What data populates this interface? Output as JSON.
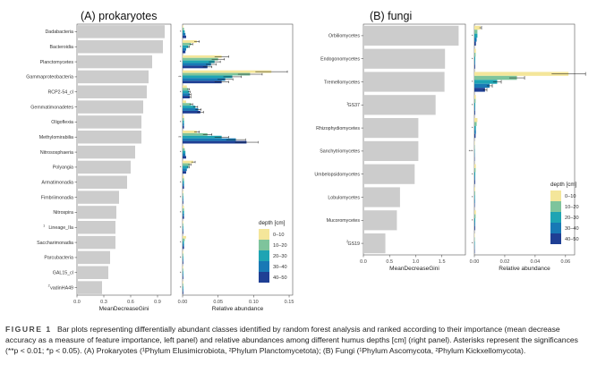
{
  "figure_label": "FIGURE 1",
  "caption": "Bar plots representing differentially abundant classes identified by random forest analysis and ranked according to their importance (mean decrease accuracy as a measure of feature importance, left panel) and relative abundances among different humus depths [cm] (right panel). Asterisks represent the significances (**p < 0.01; *p < 0.05). (A) Prokaryotes (¹Phylum Elusimicrobiota, ²Phylum Planctomycetota); (B) Fungi (¹Phylum Ascomycota, ²Phylum Kickxellomycota).",
  "colors": {
    "importance_bar": "#cccccc",
    "depth_palette": [
      "#f4e69a",
      "#7ec49c",
      "#1ea4b3",
      "#1879b5",
      "#1f3f94"
    ]
  },
  "legend": {
    "title": "depth [cm]",
    "entries": [
      "0–10",
      "10–20",
      "20–30",
      "30–40",
      "40–50"
    ]
  },
  "chart_data": [
    {
      "type": "bar",
      "title": "(A) prokaryotes",
      "panel": "importance",
      "orientation": "horizontal",
      "xlabel": "MeanDecreaseGini",
      "xlim": [
        0,
        1.05
      ],
      "xticks": [
        0.0,
        0.3,
        0.6,
        0.9
      ],
      "categories": [
        "Dadabacteria",
        "Bacteroidia",
        "Planctomycetes",
        "Gammaproteobacteria",
        "RCP2-54_cl",
        "Gemmatimonadetes",
        "Oligoflexia",
        "Methylomirabilia",
        "Nitrososphaeria",
        "Polyangia",
        "Armatimonadia",
        "Fimbriimonadia",
        "Nitrospira",
        "Lineage_IIa",
        "Saccharimonadia",
        "Parcubacteria",
        "GAL15_cl",
        "vadinHA49"
      ],
      "category_markers": [
        "",
        "",
        "",
        "",
        "",
        "",
        "",
        "",
        "",
        "",
        "",
        "",
        "",
        "1",
        "",
        "",
        "",
        "2"
      ],
      "values": [
        0.98,
        0.96,
        0.84,
        0.8,
        0.78,
        0.74,
        0.72,
        0.72,
        0.65,
        0.6,
        0.56,
        0.47,
        0.44,
        0.43,
        0.43,
        0.37,
        0.35,
        0.28
      ]
    },
    {
      "type": "bar",
      "panel": "abundance",
      "orientation": "horizontal",
      "xlabel": "Relative abundance",
      "xlim": [
        0,
        0.155
      ],
      "xticks": [
        0.0,
        0.05,
        0.1,
        0.15
      ],
      "xticklabels": [
        "0.00",
        "0.05",
        "0.10",
        "0.15"
      ],
      "categories": [
        "Dadabacteria",
        "Bacteroidia",
        "Planctomycetes",
        "Gammaproteobacteria",
        "RCP2-54_cl",
        "Gemmatimonadetes",
        "Oligoflexia",
        "Methylomirabilia",
        "Nitrososphaeria",
        "Polyangia",
        "Armatimonadia",
        "Fimbriimonadia",
        "Nitrospira",
        "Lineage_IIa",
        "Saccharimonadia",
        "Parcubacteria",
        "GAL15_cl",
        "vadinHA49"
      ],
      "series": [
        {
          "name": "0–10",
          "values": [
            0.001,
            0.02,
            0.055,
            0.125,
            0.006,
            0.005,
            0.002,
            0.02,
            0.002,
            0.015,
            0.002,
            0.001,
            0.002,
            0.001,
            0.005,
            0.001,
            0.001,
            0.001
          ]
        },
        {
          "name": "10–20",
          "values": [
            0.002,
            0.012,
            0.05,
            0.095,
            0.008,
            0.012,
            0.002,
            0.035,
            0.003,
            0.01,
            0.002,
            0.001,
            0.002,
            0.001,
            0.003,
            0.001,
            0.001,
            0.001
          ]
        },
        {
          "name": "20–30",
          "values": [
            0.003,
            0.008,
            0.045,
            0.07,
            0.009,
            0.018,
            0.002,
            0.055,
            0.004,
            0.008,
            0.002,
            0.001,
            0.002,
            0.001,
            0.002,
            0.001,
            0.001,
            0.001
          ]
        },
        {
          "name": "30–40",
          "values": [
            0.004,
            0.005,
            0.04,
            0.06,
            0.01,
            0.022,
            0.002,
            0.075,
            0.004,
            0.006,
            0.002,
            0.001,
            0.002,
            0.001,
            0.002,
            0.001,
            0.001,
            0.001
          ]
        },
        {
          "name": "40–50",
          "values": [
            0.005,
            0.004,
            0.035,
            0.055,
            0.01,
            0.025,
            0.002,
            0.09,
            0.005,
            0.005,
            0.002,
            0.001,
            0.002,
            0.001,
            0.002,
            0.001,
            0.001,
            0.001
          ]
        }
      ],
      "significance": [
        "*",
        "*",
        "*",
        "**",
        "*",
        "*",
        "*",
        "**",
        "*",
        "*",
        "*",
        "*",
        "*",
        "*",
        "*",
        "*",
        "*",
        "*"
      ]
    },
    {
      "type": "bar",
      "title": "(B) fungi",
      "panel": "importance",
      "orientation": "horizontal",
      "xlabel": "MeanDecreaseGini",
      "xlim": [
        0,
        1.95
      ],
      "xticks": [
        0.0,
        0.5,
        1.0,
        1.5
      ],
      "xticklabels": [
        "0.0",
        "0.5",
        "1.0",
        "1.5"
      ],
      "categories": [
        "Orbiliomycetes",
        "Endogonomycetes",
        "Tremellomycetes",
        "GS37",
        "Rhizophydiomycetes",
        "Sanchytriomycetes",
        "Umbelopsidomycetes",
        "Lobulomycetes",
        "Mucoromycetes",
        "GS19"
      ],
      "category_markers": [
        "",
        "",
        "",
        "1",
        "",
        "",
        "",
        "",
        "",
        "2"
      ],
      "values": [
        1.82,
        1.56,
        1.55,
        1.38,
        1.05,
        1.05,
        0.98,
        0.7,
        0.64,
        0.42
      ]
    },
    {
      "type": "bar",
      "panel": "abundance",
      "orientation": "horizontal",
      "xlabel": "Relative abundance",
      "xlim": [
        0,
        0.066
      ],
      "xticks": [
        0.0,
        0.02,
        0.04,
        0.06
      ],
      "xticklabels": [
        "0.00",
        "0.02",
        "0.04",
        "0.06"
      ],
      "categories": [
        "Orbiliomycetes",
        "Endogonomycetes",
        "Tremellomycetes",
        "GS37",
        "Rhizophydiomycetes",
        "Sanchytriomycetes",
        "Umbelopsidomycetes",
        "Lobulomycetes",
        "Mucoromycetes",
        "GS19"
      ],
      "series": [
        {
          "name": "0–10",
          "values": [
            0.004,
            0.001,
            0.062,
            0.001,
            0.002,
            0.0002,
            0.001,
            0.0005,
            0.001,
            0.0003
          ]
        },
        {
          "name": "10–20",
          "values": [
            0.002,
            0.0008,
            0.028,
            0.0008,
            0.0015,
            0.0002,
            0.0008,
            0.0005,
            0.0008,
            0.0003
          ]
        },
        {
          "name": "20–30",
          "values": [
            0.002,
            0.0006,
            0.015,
            0.0006,
            0.001,
            0.0002,
            0.0006,
            0.0004,
            0.0006,
            0.0003
          ]
        },
        {
          "name": "30–40",
          "values": [
            0.0015,
            0.0005,
            0.01,
            0.0005,
            0.001,
            0.0002,
            0.0005,
            0.0004,
            0.0005,
            0.0002
          ]
        },
        {
          "name": "40–50",
          "values": [
            0.001,
            0.0005,
            0.007,
            0.0005,
            0.0008,
            0.0002,
            0.0005,
            0.0003,
            0.0005,
            0.0002
          ]
        }
      ],
      "significance": [
        "*",
        "*",
        "*",
        "*",
        "*",
        "***",
        "*",
        "*",
        "*",
        "*"
      ]
    }
  ]
}
